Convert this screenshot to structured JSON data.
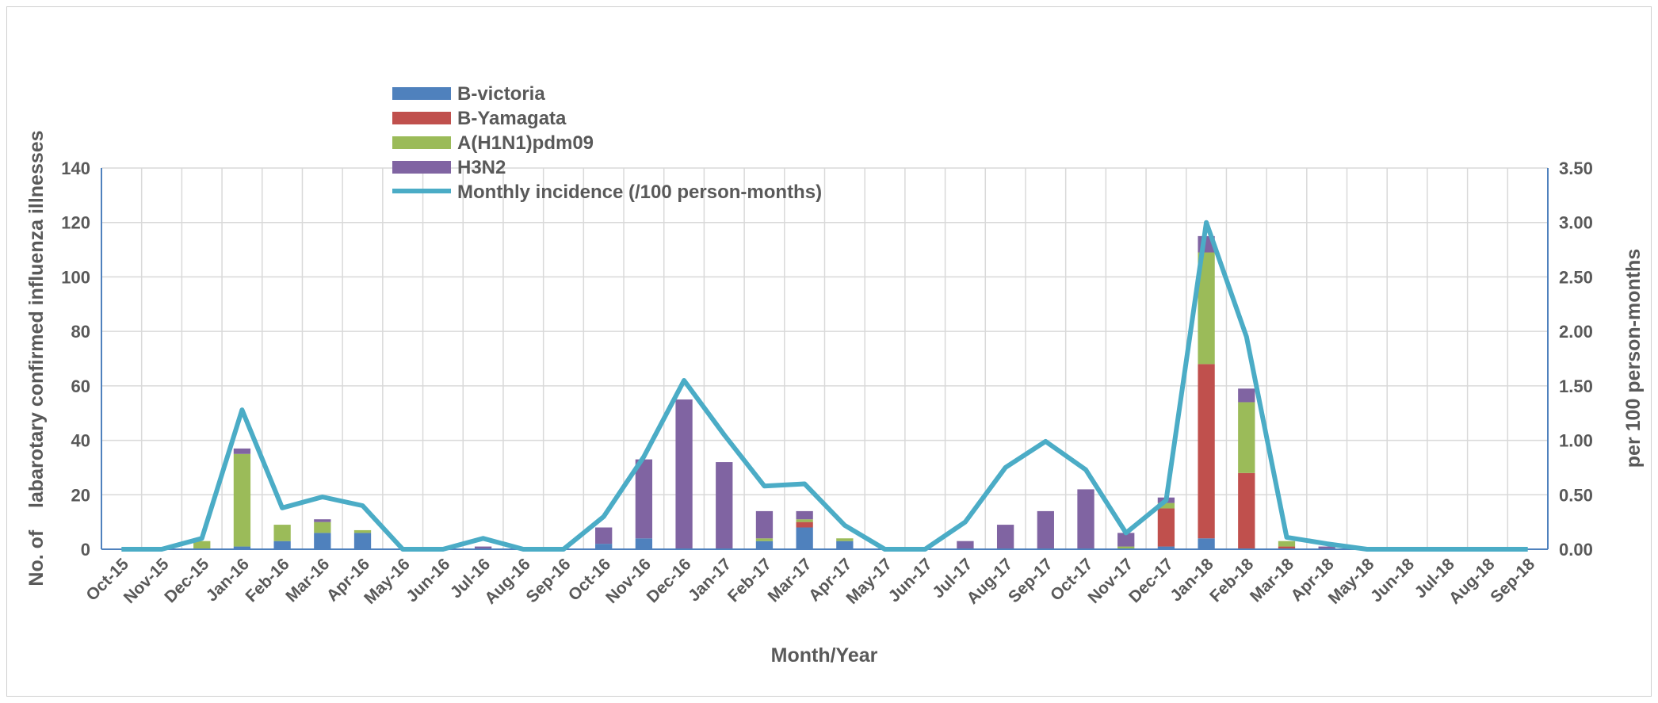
{
  "chart_data": {
    "type": "bar",
    "stacked": true,
    "xlabel": "Month/Year",
    "ylabel_left": "No. of    labarotary confirmed influenza illnesses",
    "ylabel_right": "per 100 person-months",
    "ylim_left": [
      0,
      140
    ],
    "yticks_left": [
      "0",
      "20",
      "40",
      "60",
      "80",
      "100",
      "120",
      "140"
    ],
    "ylim_right": [
      0,
      3.5
    ],
    "yticks_right": [
      "0.00",
      "0.50",
      "1.00",
      "1.50",
      "2.00",
      "2.50",
      "3.00",
      "3.50"
    ],
    "grid": true,
    "legend_position": "top-left",
    "categories": [
      "Oct-15",
      "Nov-15",
      "Dec-15",
      "Jan-16",
      "Feb-16",
      "Mar-16",
      "Apr-16",
      "May-16",
      "Jun-16",
      "Jul-16",
      "Aug-16",
      "Sep-16",
      "Oct-16",
      "Nov-16",
      "Dec-16",
      "Jan-17",
      "Feb-17",
      "Mar-17",
      "Apr-17",
      "May-17",
      "Jun-17",
      "Jul-17",
      "Aug-17",
      "Sep-17",
      "Oct-17",
      "Nov-17",
      "Dec-17",
      "Jan-18",
      "Feb-18",
      "Mar-18",
      "Apr-18",
      "May-18",
      "Jun-18",
      "Jul-18",
      "Aug-18",
      "Sep-18"
    ],
    "series": [
      {
        "name": "B-victoria",
        "color": "#4f81bd",
        "values": [
          0,
          0,
          0,
          1,
          3,
          6,
          6,
          0,
          0,
          0,
          0,
          0,
          2,
          4,
          0,
          0,
          3,
          8,
          3,
          0,
          0,
          0,
          0,
          0,
          0,
          0,
          1,
          4,
          0,
          0,
          0,
          0,
          0,
          0,
          0,
          0
        ]
      },
      {
        "name": "B-Yamagata",
        "color": "#c0504d",
        "values": [
          0,
          0,
          0,
          0,
          0,
          0,
          0,
          0,
          0,
          0,
          0,
          0,
          0,
          0,
          0,
          0,
          0,
          2,
          0,
          0,
          0,
          0,
          0,
          0,
          0,
          0,
          14,
          64,
          28,
          1,
          0,
          0,
          0,
          0,
          0,
          0
        ]
      },
      {
        "name": "A(H1N1)pdm09",
        "color": "#9bbb59",
        "values": [
          0,
          0,
          3,
          34,
          6,
          4,
          1,
          0,
          0,
          0,
          0,
          0,
          0,
          0,
          0,
          0,
          1,
          1,
          1,
          0,
          0,
          0,
          0,
          0,
          0,
          1,
          2,
          41,
          26,
          2,
          0,
          0,
          0,
          0,
          0,
          0
        ]
      },
      {
        "name": "H3N2",
        "color": "#8064a2",
        "values": [
          0,
          0,
          0,
          2,
          0,
          1,
          0,
          0,
          0,
          1,
          0,
          0,
          6,
          29,
          55,
          32,
          10,
          3,
          0,
          0,
          0,
          3,
          9,
          14,
          22,
          5,
          2,
          6,
          5,
          0,
          1,
          0,
          0,
          0,
          0,
          0
        ]
      }
    ],
    "line_series": {
      "name": "Monthly incidence (/100 person-months)",
      "color": "#4bacc6",
      "axis": "right",
      "values": [
        0,
        0,
        0.1,
        1.28,
        0.38,
        0.48,
        0.4,
        0,
        0,
        0.1,
        0,
        0,
        0.3,
        0.85,
        1.55,
        1.05,
        0.58,
        0.6,
        0.22,
        0,
        0,
        0.25,
        0.75,
        0.99,
        0.73,
        0.15,
        0.45,
        3.0,
        1.95,
        0.11,
        0.05,
        0,
        0,
        0,
        0,
        0
      ]
    }
  }
}
